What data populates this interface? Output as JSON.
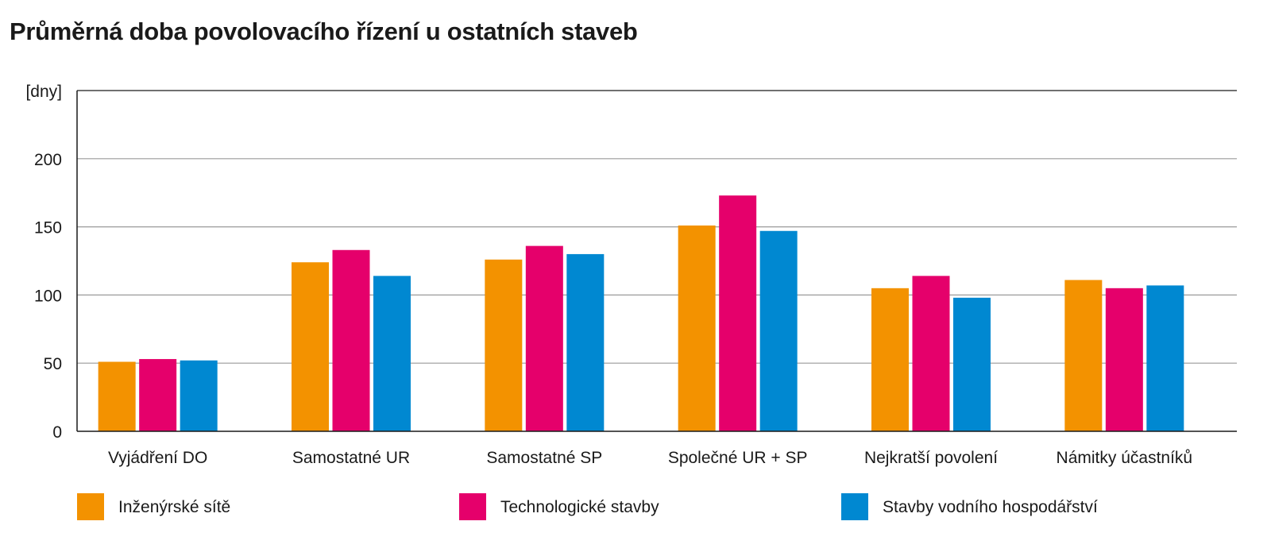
{
  "chart_data": {
    "type": "bar",
    "title": "Průměrná doba povolovacího řízení u ostatních staveb",
    "ylabel": "[dny]",
    "xlabel": "",
    "ylim": [
      0,
      250
    ],
    "yticks": [
      0,
      50,
      100,
      150,
      200
    ],
    "grid": true,
    "legend_position": "bottom",
    "categories": [
      "Vyjádření DO",
      "Samostatné UR",
      "Samostatné SP",
      "Společné UR + SP",
      "Nejkratší povolení",
      "Námitky účastníků"
    ],
    "series": [
      {
        "name": "Inženýrské sítě",
        "color": "#f39200",
        "values": [
          51,
          124,
          126,
          151,
          105,
          111
        ]
      },
      {
        "name": "Technologické stavby",
        "color": "#e5006b",
        "values": [
          53,
          133,
          136,
          173,
          114,
          105
        ]
      },
      {
        "name": "Stavby vodního hospodářství",
        "color": "#0088d1",
        "values": [
          52,
          114,
          130,
          147,
          98,
          107
        ]
      }
    ]
  }
}
